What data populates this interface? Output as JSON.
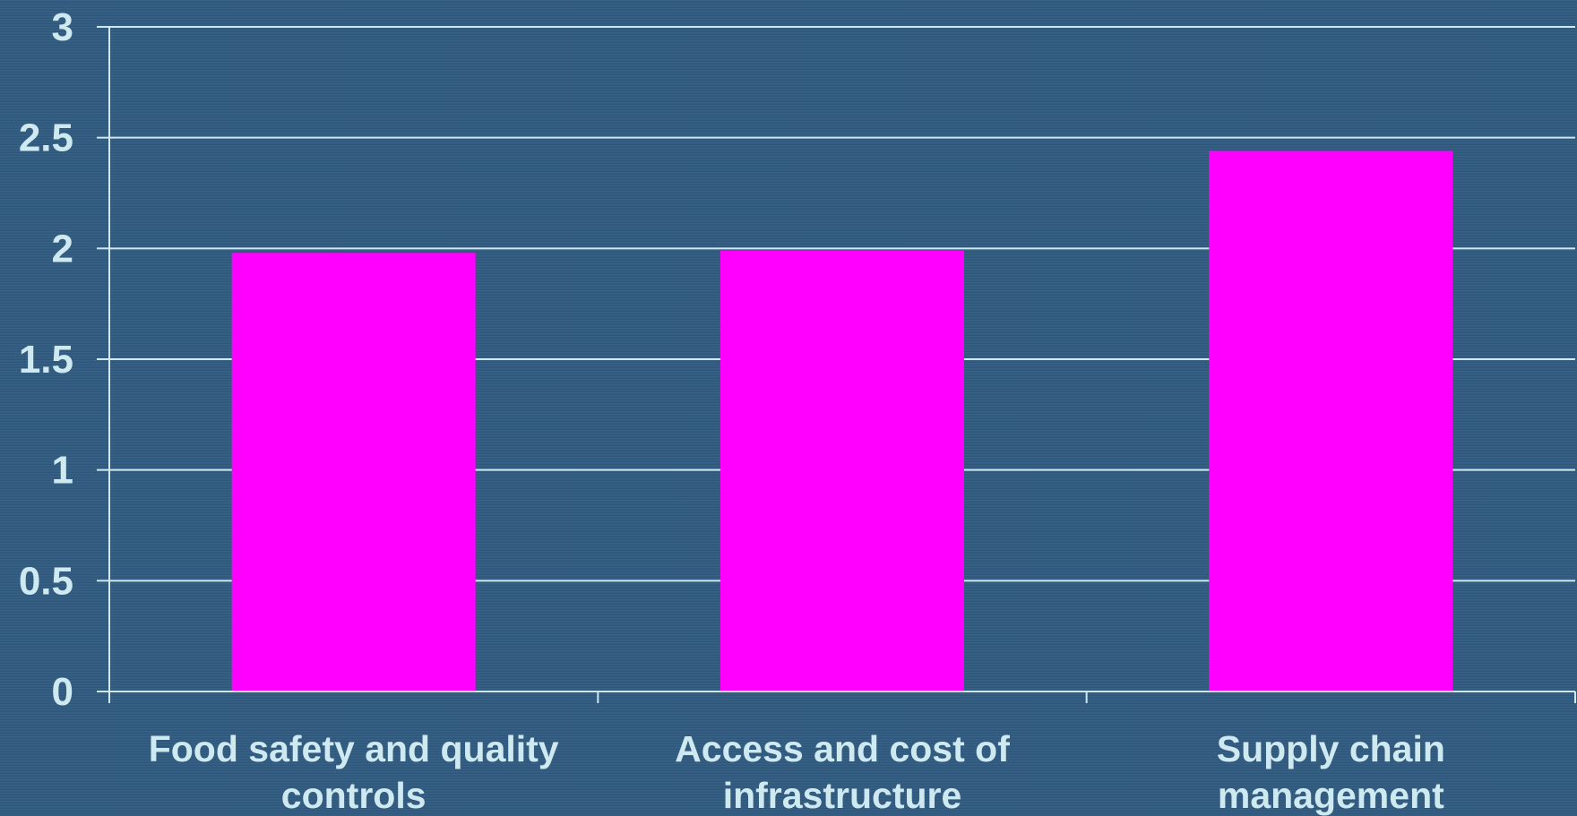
{
  "chart_data": {
    "type": "bar",
    "categories": [
      [
        "Food safety and quality",
        "controls"
      ],
      [
        "Access and cost of",
        "infrastructure"
      ],
      [
        "Supply chain",
        "management"
      ]
    ],
    "values": [
      1.98,
      1.99,
      2.44
    ],
    "yticks": [
      "0",
      "0.5",
      "1",
      "1.5",
      "2",
      "2.5",
      "3"
    ],
    "ylim": [
      0,
      3
    ],
    "grid": true,
    "colors": {
      "bar": "#ff00ff",
      "axis": "#cfe9f0",
      "grid": "#cfe9f0",
      "background": "#2f5a80"
    }
  }
}
